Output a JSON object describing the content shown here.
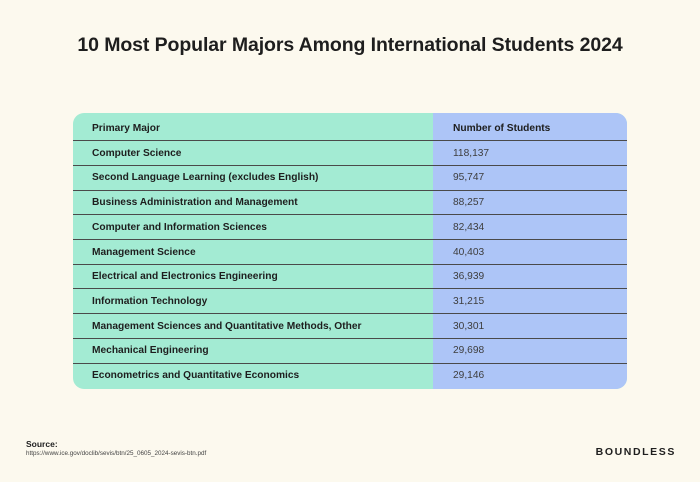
{
  "title": "10 Most Popular Majors Among International Students 2024",
  "chart_data": {
    "type": "table",
    "columns": [
      "Primary Major",
      "Number of Students"
    ],
    "rows": [
      {
        "major": "Computer Science",
        "count": "118,137"
      },
      {
        "major": "Second Language Learning (excludes English)",
        "count": "95,747"
      },
      {
        "major": "Business Administration and Management",
        "count": "88,257"
      },
      {
        "major": "Computer and Information Sciences",
        "count": "82,434"
      },
      {
        "major": "Management Science",
        "count": "40,403"
      },
      {
        "major": "Electrical and Electronics Engineering",
        "count": "36,939"
      },
      {
        "major": "Information Technology",
        "count": "31,215"
      },
      {
        "major": "Management Sciences and Quantitative Methods, Other",
        "count": "30,301"
      },
      {
        "major": "Mechanical Engineering",
        "count": "29,698"
      },
      {
        "major": "Econometrics and Quantitative Economics",
        "count": "29,146"
      }
    ]
  },
  "colors": {
    "background": "#fcf9ee",
    "major_column": "#a3ebd3",
    "count_column": "#adc5f7",
    "text": "#1e1e1e"
  },
  "footer": {
    "source_label": "Source:",
    "source_url": "https://www.ice.gov/doclib/sevis/btn/25_0605_2024-sevis-btn.pdf",
    "brand": "BOUNDLESS"
  }
}
